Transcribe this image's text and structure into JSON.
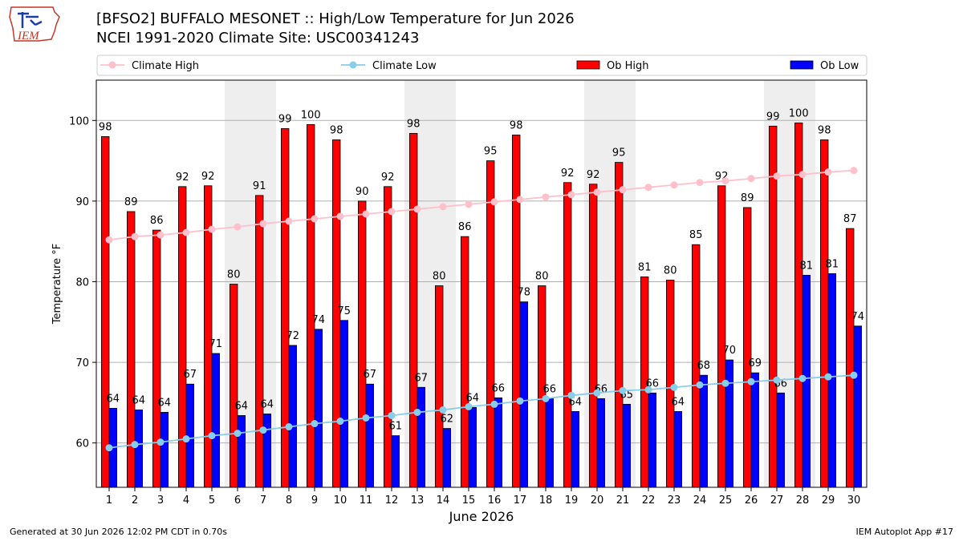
{
  "header": {
    "title_line1": "[BFSO2] BUFFALO MESONET :: High/Low Temperature for Jun 2026",
    "title_line2": "NCEI 1991-2020 Climate Site: USC00341243",
    "logo_text": "IEM"
  },
  "footer": {
    "left": "Generated at 30 Jun 2026 12:02 PM CDT in 0.70s",
    "right": "IEM Autoplot App #17"
  },
  "colors": {
    "ob_high": "#ff0000",
    "ob_low": "#0000ff",
    "climate_high": "#ffc0cb",
    "climate_low": "#87ceeb",
    "weekend_shade": "#eeeeee",
    "grid": "#b0b0b0"
  },
  "chart_data": {
    "type": "bar",
    "xlabel": "June 2026",
    "ylabel": "Temperature °F",
    "ylim": [
      54.5,
      105
    ],
    "yticks": [
      60,
      70,
      80,
      90,
      100
    ],
    "grid": "horizontal",
    "legend_position": "top",
    "shaded_weekend_days": [
      6,
      7,
      13,
      14,
      20,
      21,
      27,
      28
    ],
    "categories": [
      1,
      2,
      3,
      4,
      5,
      6,
      7,
      8,
      9,
      10,
      11,
      12,
      13,
      14,
      15,
      16,
      17,
      18,
      19,
      20,
      21,
      22,
      23,
      24,
      25,
      26,
      27,
      28,
      29,
      30
    ],
    "series": [
      {
        "name": "Ob High",
        "kind": "bar",
        "values": [
          98,
          89,
          86,
          92,
          92,
          80,
          91,
          99,
          100,
          98,
          90,
          92,
          98,
          80,
          86,
          95,
          98,
          80,
          92,
          92,
          95,
          81,
          80,
          85,
          92,
          89,
          99,
          100,
          98,
          87
        ],
        "bar_tops": [
          98.0,
          88.7,
          86.4,
          91.8,
          91.9,
          79.7,
          90.7,
          99.0,
          99.5,
          97.6,
          90.0,
          91.8,
          98.4,
          79.5,
          85.6,
          95.0,
          98.2,
          79.5,
          92.3,
          92.1,
          94.8,
          80.6,
          80.2,
          84.6,
          91.9,
          89.2,
          99.3,
          99.7,
          97.6,
          86.6
        ]
      },
      {
        "name": "Ob Low",
        "kind": "bar",
        "values": [
          64,
          64,
          64,
          67,
          71,
          64,
          64,
          72,
          74,
          75,
          67,
          61,
          67,
          62,
          64,
          66,
          78,
          66,
          64,
          66,
          65,
          66,
          64,
          68,
          70,
          69,
          66,
          81,
          81,
          74
        ],
        "bar_tops": [
          64.3,
          64.1,
          63.8,
          67.3,
          71.1,
          63.4,
          63.6,
          72.1,
          74.1,
          75.2,
          67.3,
          60.9,
          66.9,
          61.8,
          64.4,
          65.6,
          77.5,
          65.5,
          63.9,
          65.5,
          64.8,
          66.2,
          63.9,
          68.4,
          70.3,
          68.7,
          66.2,
          80.8,
          81.0,
          74.5
        ]
      },
      {
        "name": "Climate High",
        "kind": "line",
        "values": [
          85.2,
          85.6,
          85.8,
          86.1,
          86.5,
          86.8,
          87.2,
          87.5,
          87.8,
          88.1,
          88.4,
          88.7,
          89.0,
          89.3,
          89.6,
          89.9,
          90.2,
          90.5,
          90.8,
          91.1,
          91.4,
          91.7,
          92.0,
          92.3,
          92.5,
          92.8,
          93.1,
          93.3,
          93.6,
          93.8
        ]
      },
      {
        "name": "Climate Low",
        "kind": "line",
        "values": [
          59.4,
          59.8,
          60.1,
          60.5,
          60.9,
          61.2,
          61.6,
          62.0,
          62.4,
          62.7,
          63.1,
          63.4,
          63.8,
          64.1,
          64.5,
          64.8,
          65.2,
          65.5,
          65.9,
          66.2,
          66.5,
          66.6,
          66.9,
          67.2,
          67.4,
          67.6,
          67.8,
          68.0,
          68.2,
          68.4
        ]
      }
    ]
  }
}
